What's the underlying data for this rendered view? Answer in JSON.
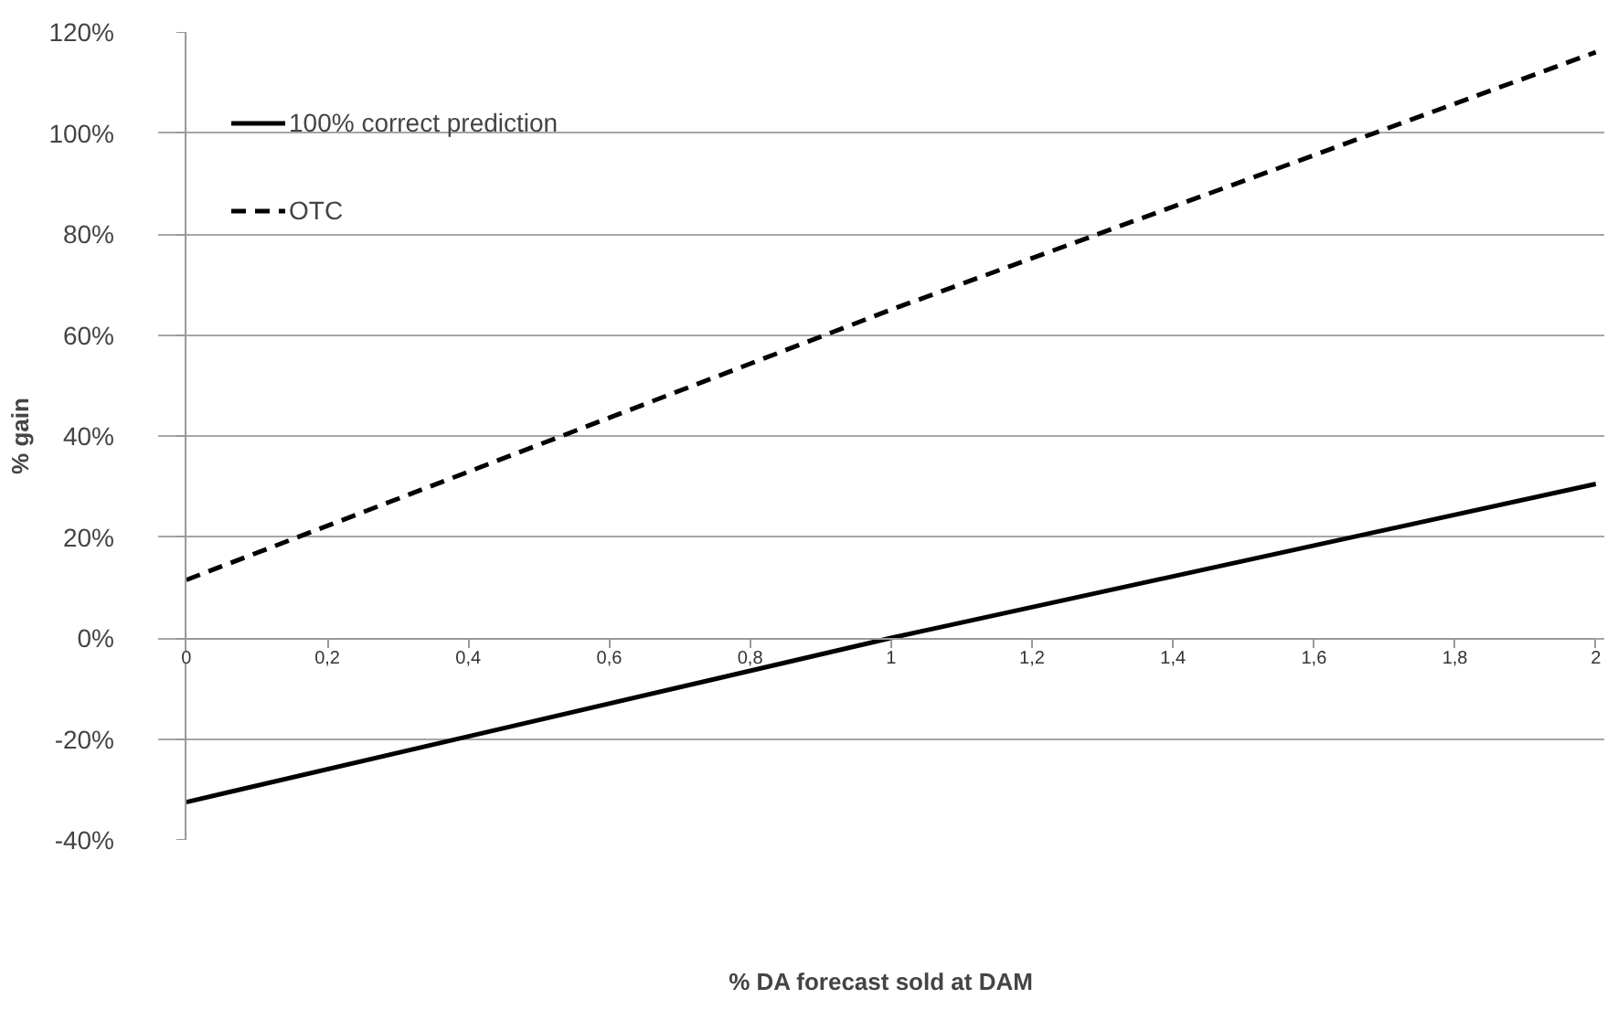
{
  "chart_data": {
    "type": "line",
    "xlabel": "% DA forecast sold at DAM",
    "ylabel": "% gain",
    "x": [
      0,
      1,
      2
    ],
    "series": [
      {
        "name": "100% correct prediction",
        "color": "#000000",
        "line_style": "solid",
        "values": [
          -32.5,
          0,
          30.5
        ]
      },
      {
        "name": "OTC",
        "color": "#000000",
        "line_style": "dashed",
        "values": [
          11.5,
          65,
          116
        ]
      }
    ],
    "xlim": [
      0,
      2
    ],
    "xticks": [
      0,
      {
        "value": 0.2,
        "label": "0,2"
      },
      {
        "value": 0.4,
        "label": "0,4"
      },
      {
        "value": 0.6,
        "label": "0,6"
      },
      {
        "value": 0.8,
        "label": "0,8"
      },
      1,
      {
        "value": 1.2,
        "label": "1,2"
      },
      {
        "value": 1.4,
        "label": "1,4"
      },
      {
        "value": 1.6,
        "label": "1,6"
      },
      {
        "value": 1.8,
        "label": "1,8"
      },
      2
    ],
    "ylim": [
      -40,
      120
    ],
    "yticks": [
      {
        "value": -40,
        "label": "-40%"
      },
      {
        "value": -20,
        "label": "-20%"
      },
      {
        "value": 0,
        "label": "0%"
      },
      {
        "value": 20,
        "label": "20%"
      },
      {
        "value": 40,
        "label": "40%"
      },
      {
        "value": 60,
        "label": "60%"
      },
      {
        "value": 80,
        "label": "80%"
      },
      {
        "value": 100,
        "label": "100%"
      },
      {
        "value": 120,
        "label": "120%"
      }
    ],
    "grid": "y",
    "legend": "top left",
    "marker": "none"
  }
}
